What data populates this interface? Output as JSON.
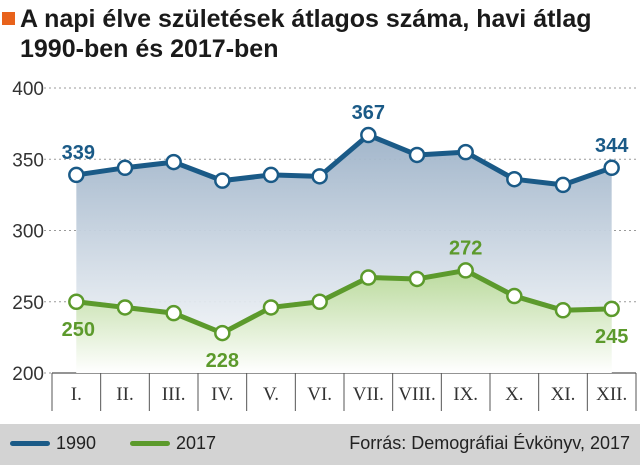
{
  "title": "A napi élve születések átlagos száma, havi átlag 1990-ben és 2017-ben",
  "colors": {
    "accent": "#e8621b",
    "series_1990": "#1a5a87",
    "series_2017": "#5c9a2c",
    "fill_1990_top": "#9db2c8",
    "fill_1990_bottom": "#ffffff",
    "fill_2017_top": "#b9da99",
    "fill_2017_bottom": "#ffffff",
    "footer_bg": "#d3d3d3",
    "grid": "#9a9a9a"
  },
  "chart_data": {
    "type": "line",
    "title": "A napi élve születések átlagos száma, havi átlag 1990-ben és 2017-ben",
    "xlabel": "",
    "ylabel": "",
    "categories": [
      "I.",
      "II.",
      "III.",
      "IV.",
      "V.",
      "VI.",
      "VII.",
      "VIII.",
      "IX.",
      "X.",
      "XI.",
      "XII."
    ],
    "ylim": [
      200,
      400
    ],
    "yticks": [
      200,
      250,
      300,
      350,
      400
    ],
    "grid": true,
    "legend_position": "bottom-left",
    "series": [
      {
        "name": "1990",
        "values": [
          339,
          344,
          348,
          335,
          339,
          338,
          367,
          353,
          355,
          336,
          332,
          344
        ],
        "labels": [
          {
            "index": 0,
            "text": "339"
          },
          {
            "index": 6,
            "text": "367"
          },
          {
            "index": 11,
            "text": "344"
          }
        ]
      },
      {
        "name": "2017",
        "values": [
          250,
          246,
          242,
          228,
          246,
          250,
          267,
          266,
          272,
          254,
          244,
          245
        ],
        "labels": [
          {
            "index": 0,
            "text": "250"
          },
          {
            "index": 3,
            "text": "228"
          },
          {
            "index": 8,
            "text": "272"
          },
          {
            "index": 11,
            "text": "245"
          }
        ]
      }
    ]
  },
  "legend": [
    {
      "label": "1990"
    },
    {
      "label": "2017"
    }
  ],
  "source": "Forrás: Demográfiai Évkönyv, 2017"
}
